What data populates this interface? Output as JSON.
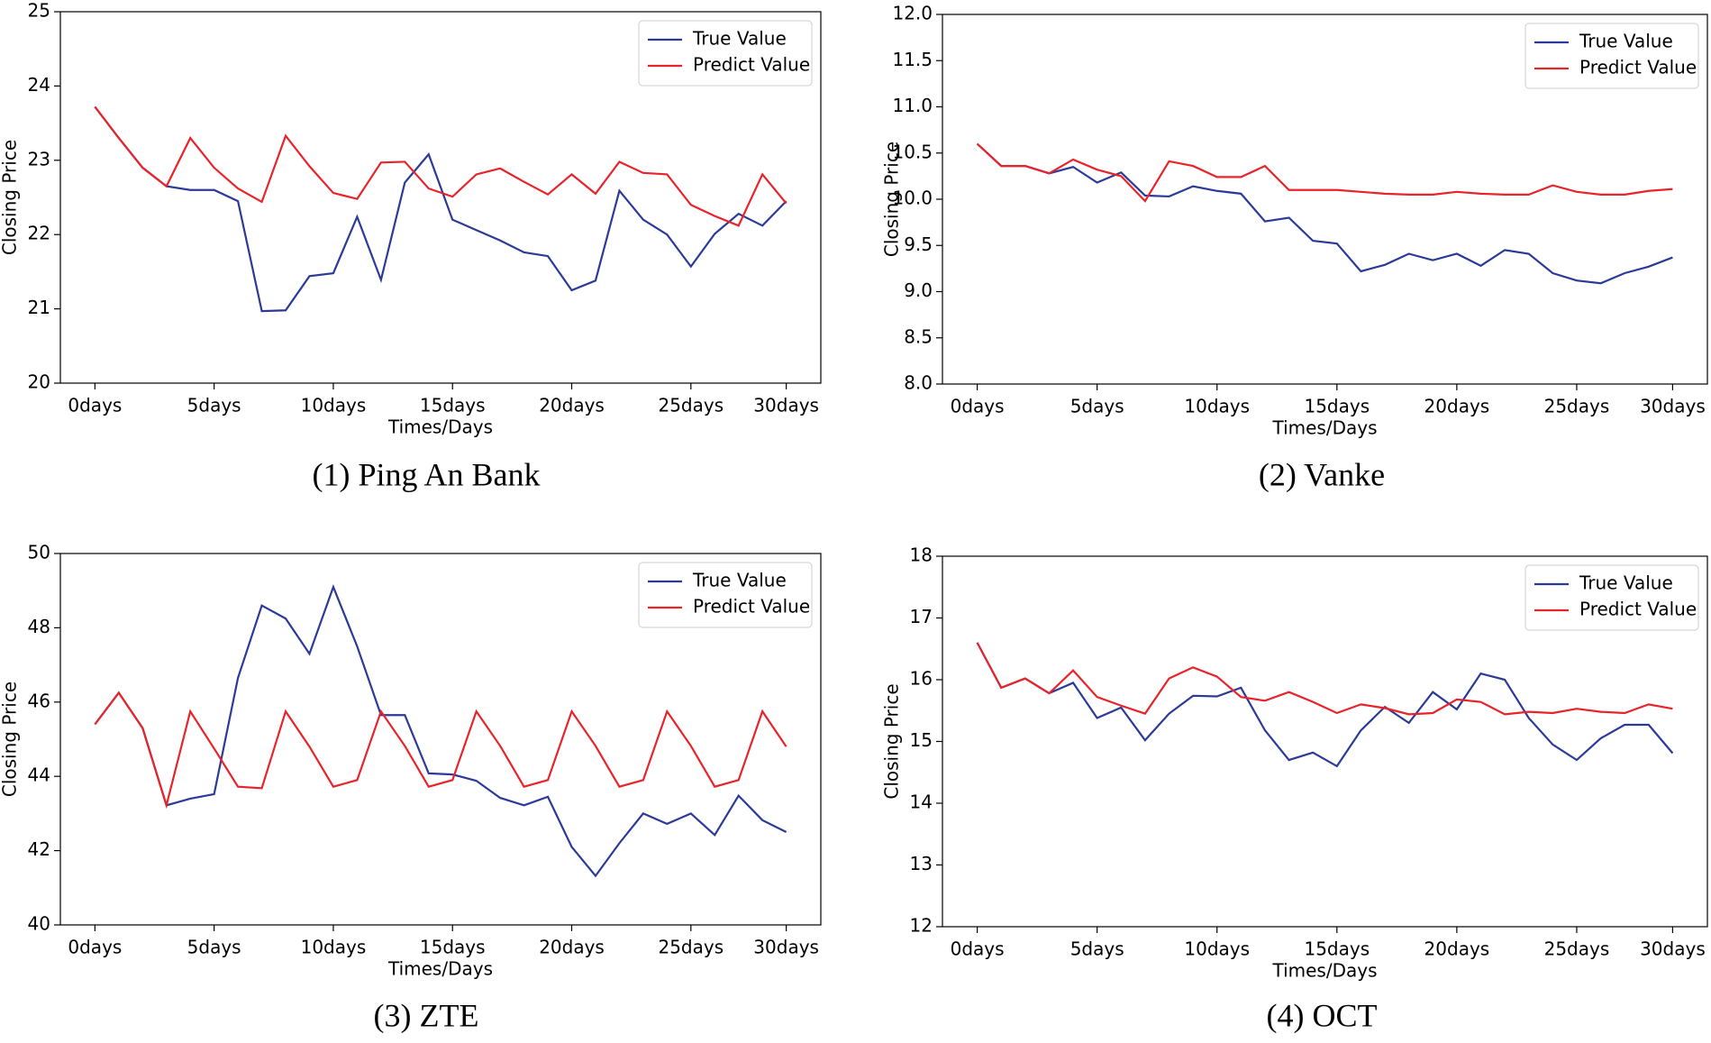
{
  "chart_data": [
    {
      "type": "line",
      "caption": "(1) Ping An Bank",
      "x_label": "Times/Days",
      "y_label": "Closing Price",
      "x": [
        0,
        1,
        2,
        3,
        4,
        5,
        6,
        7,
        8,
        9,
        10,
        11,
        12,
        13,
        14,
        15,
        16,
        17,
        18,
        19,
        20,
        21,
        22,
        23,
        24,
        25,
        26,
        27,
        28,
        29
      ],
      "series": [
        {
          "name": "True Value",
          "color": "#2b3a98",
          "values": [
            23.72,
            23.3,
            22.9,
            22.65,
            22.6,
            22.6,
            22.45,
            20.97,
            20.98,
            21.44,
            21.48,
            22.24,
            21.39,
            22.7,
            23.08,
            22.2,
            22.06,
            21.92,
            21.76,
            21.71,
            21.25,
            21.38,
            22.59,
            22.2,
            22.0,
            21.57,
            22.01,
            22.28,
            22.12,
            22.45
          ]
        },
        {
          "name": "Predict Value",
          "color": "#e8232a",
          "values": [
            23.72,
            23.3,
            22.9,
            22.65,
            23.3,
            22.9,
            22.62,
            22.44,
            23.33,
            22.92,
            22.56,
            22.48,
            22.97,
            22.98,
            22.62,
            22.51,
            22.81,
            22.89,
            22.71,
            22.54,
            22.81,
            22.55,
            22.98,
            22.83,
            22.81,
            22.4,
            22.25,
            22.12,
            22.81,
            22.42
          ]
        }
      ],
      "xlim": [
        -1.45,
        30.45
      ],
      "ylim": [
        20,
        25
      ],
      "yticks": [
        20,
        21,
        22,
        23,
        24,
        25
      ],
      "xticks": [
        {
          "value": 0,
          "label": "0days"
        },
        {
          "value": 5,
          "label": "5days"
        },
        {
          "value": 10,
          "label": "10days"
        },
        {
          "value": 15,
          "label": "15days"
        },
        {
          "value": 20,
          "label": "20days"
        },
        {
          "value": 25,
          "label": "25days"
        },
        {
          "value": 29,
          "label": "30days"
        }
      ],
      "legend": "upper right"
    },
    {
      "type": "line",
      "caption": "(2) Vanke",
      "x_label": "Times/Days",
      "y_label": "Closing Price",
      "x": [
        0,
        1,
        2,
        3,
        4,
        5,
        6,
        7,
        8,
        9,
        10,
        11,
        12,
        13,
        14,
        15,
        16,
        17,
        18,
        19,
        20,
        21,
        22,
        23,
        24,
        25,
        26,
        27,
        28,
        29
      ],
      "series": [
        {
          "name": "True Value",
          "color": "#2b3a98",
          "values": [
            10.6,
            10.36,
            10.36,
            10.28,
            10.35,
            10.18,
            10.29,
            10.04,
            10.03,
            10.14,
            10.09,
            10.06,
            9.76,
            9.8,
            9.55,
            9.52,
            9.22,
            9.29,
            9.41,
            9.34,
            9.41,
            9.28,
            9.45,
            9.41,
            9.2,
            9.12,
            9.09,
            9.2,
            9.27,
            9.37
          ]
        },
        {
          "name": "Predict Value",
          "color": "#e8232a",
          "values": [
            10.6,
            10.36,
            10.36,
            10.28,
            10.43,
            10.32,
            10.25,
            9.98,
            10.41,
            10.36,
            10.24,
            10.24,
            10.36,
            10.1,
            10.1,
            10.1,
            10.08,
            10.06,
            10.05,
            10.05,
            10.08,
            10.06,
            10.05,
            10.05,
            10.15,
            10.08,
            10.05,
            10.05,
            10.09,
            10.11
          ]
        }
      ],
      "xlim": [
        -1.45,
        30.45
      ],
      "ylim": [
        8,
        12
      ],
      "yticks": [
        {
          "value": 8,
          "label": "8.0"
        },
        {
          "value": 8.5,
          "label": "8.5"
        },
        {
          "value": 9,
          "label": "9.0"
        },
        {
          "value": 9.5,
          "label": "9.5"
        },
        {
          "value": 10,
          "label": "10.0"
        },
        {
          "value": 10.5,
          "label": "10.5"
        },
        {
          "value": 11,
          "label": "11.0"
        },
        {
          "value": 11.5,
          "label": "11.5"
        },
        {
          "value": 12,
          "label": "12.0"
        }
      ],
      "xticks": [
        {
          "value": 0,
          "label": "0days"
        },
        {
          "value": 5,
          "label": "5days"
        },
        {
          "value": 10,
          "label": "10days"
        },
        {
          "value": 15,
          "label": "15days"
        },
        {
          "value": 20,
          "label": "20days"
        },
        {
          "value": 25,
          "label": "25days"
        },
        {
          "value": 29,
          "label": "30days"
        }
      ],
      "legend": "upper right"
    },
    {
      "type": "line",
      "caption": "(3) ZTE",
      "x_label": "Times/Days",
      "y_label": "Closing Price",
      "x": [
        0,
        1,
        2,
        3,
        4,
        5,
        6,
        7,
        8,
        9,
        10,
        11,
        12,
        13,
        14,
        15,
        16,
        17,
        18,
        19,
        20,
        21,
        22,
        23,
        24,
        25,
        26,
        27,
        28,
        29
      ],
      "series": [
        {
          "name": "True Value",
          "color": "#2b3a98",
          "values": [
            45.4,
            46.25,
            45.3,
            43.22,
            43.4,
            43.52,
            46.65,
            48.6,
            48.25,
            47.3,
            49.1,
            47.5,
            45.65,
            45.65,
            44.08,
            44.05,
            43.88,
            43.42,
            43.22,
            43.45,
            42.1,
            41.32,
            42.2,
            43.0,
            42.72,
            43.0,
            42.42,
            43.48,
            42.82,
            42.5
          ]
        },
        {
          "name": "Predict Value",
          "color": "#e8232a",
          "values": [
            45.4,
            46.25,
            45.3,
            43.22,
            45.75,
            44.75,
            43.72,
            43.68,
            45.75,
            44.8,
            43.72,
            43.9,
            45.75,
            44.82,
            43.72,
            43.9,
            45.75,
            44.82,
            43.72,
            43.9,
            45.75,
            44.82,
            43.72,
            43.9,
            45.75,
            44.82,
            43.72,
            43.9,
            45.75,
            44.8
          ]
        }
      ],
      "xlim": [
        -1.45,
        30.45
      ],
      "ylim": [
        40,
        50
      ],
      "yticks": [
        40,
        42,
        44,
        46,
        48,
        50
      ],
      "xticks": [
        {
          "value": 0,
          "label": "0days"
        },
        {
          "value": 5,
          "label": "5days"
        },
        {
          "value": 10,
          "label": "10days"
        },
        {
          "value": 15,
          "label": "15days"
        },
        {
          "value": 20,
          "label": "20days"
        },
        {
          "value": 25,
          "label": "25days"
        },
        {
          "value": 29,
          "label": "30days"
        }
      ],
      "legend": "upper right"
    },
    {
      "type": "line",
      "caption": "(4) OCT",
      "x_label": "Times/Days",
      "y_label": "Closing Price",
      "x": [
        0,
        1,
        2,
        3,
        4,
        5,
        6,
        7,
        8,
        9,
        10,
        11,
        12,
        13,
        14,
        15,
        16,
        17,
        18,
        19,
        20,
        21,
        22,
        23,
        24,
        25,
        26,
        27,
        28,
        29
      ],
      "series": [
        {
          "name": "True Value",
          "color": "#2b3a98",
          "values": [
            16.6,
            15.87,
            16.02,
            15.78,
            15.95,
            15.38,
            15.55,
            15.02,
            15.45,
            15.74,
            15.73,
            15.87,
            15.18,
            14.7,
            14.82,
            14.6,
            15.18,
            15.56,
            15.3,
            15.8,
            15.52,
            16.1,
            16.0,
            15.38,
            14.95,
            14.7,
            15.05,
            15.27,
            15.27,
            14.81
          ]
        },
        {
          "name": "Predict Value",
          "color": "#e8232a",
          "values": [
            16.6,
            15.87,
            16.02,
            15.78,
            16.15,
            15.72,
            15.58,
            15.45,
            16.02,
            16.2,
            16.05,
            15.72,
            15.66,
            15.8,
            15.64,
            15.46,
            15.6,
            15.54,
            15.44,
            15.46,
            15.68,
            15.64,
            15.44,
            15.48,
            15.46,
            15.53,
            15.48,
            15.46,
            15.6,
            15.53
          ]
        }
      ],
      "xlim": [
        -1.45,
        30.45
      ],
      "ylim": [
        12,
        18
      ],
      "yticks": [
        12,
        13,
        14,
        15,
        16,
        17,
        18
      ],
      "xticks": [
        {
          "value": 0,
          "label": "0days"
        },
        {
          "value": 5,
          "label": "5days"
        },
        {
          "value": 10,
          "label": "10days"
        },
        {
          "value": 15,
          "label": "15days"
        },
        {
          "value": 20,
          "label": "20days"
        },
        {
          "value": 25,
          "label": "25days"
        },
        {
          "value": 29,
          "label": "30days"
        }
      ],
      "legend": "upper right"
    }
  ]
}
